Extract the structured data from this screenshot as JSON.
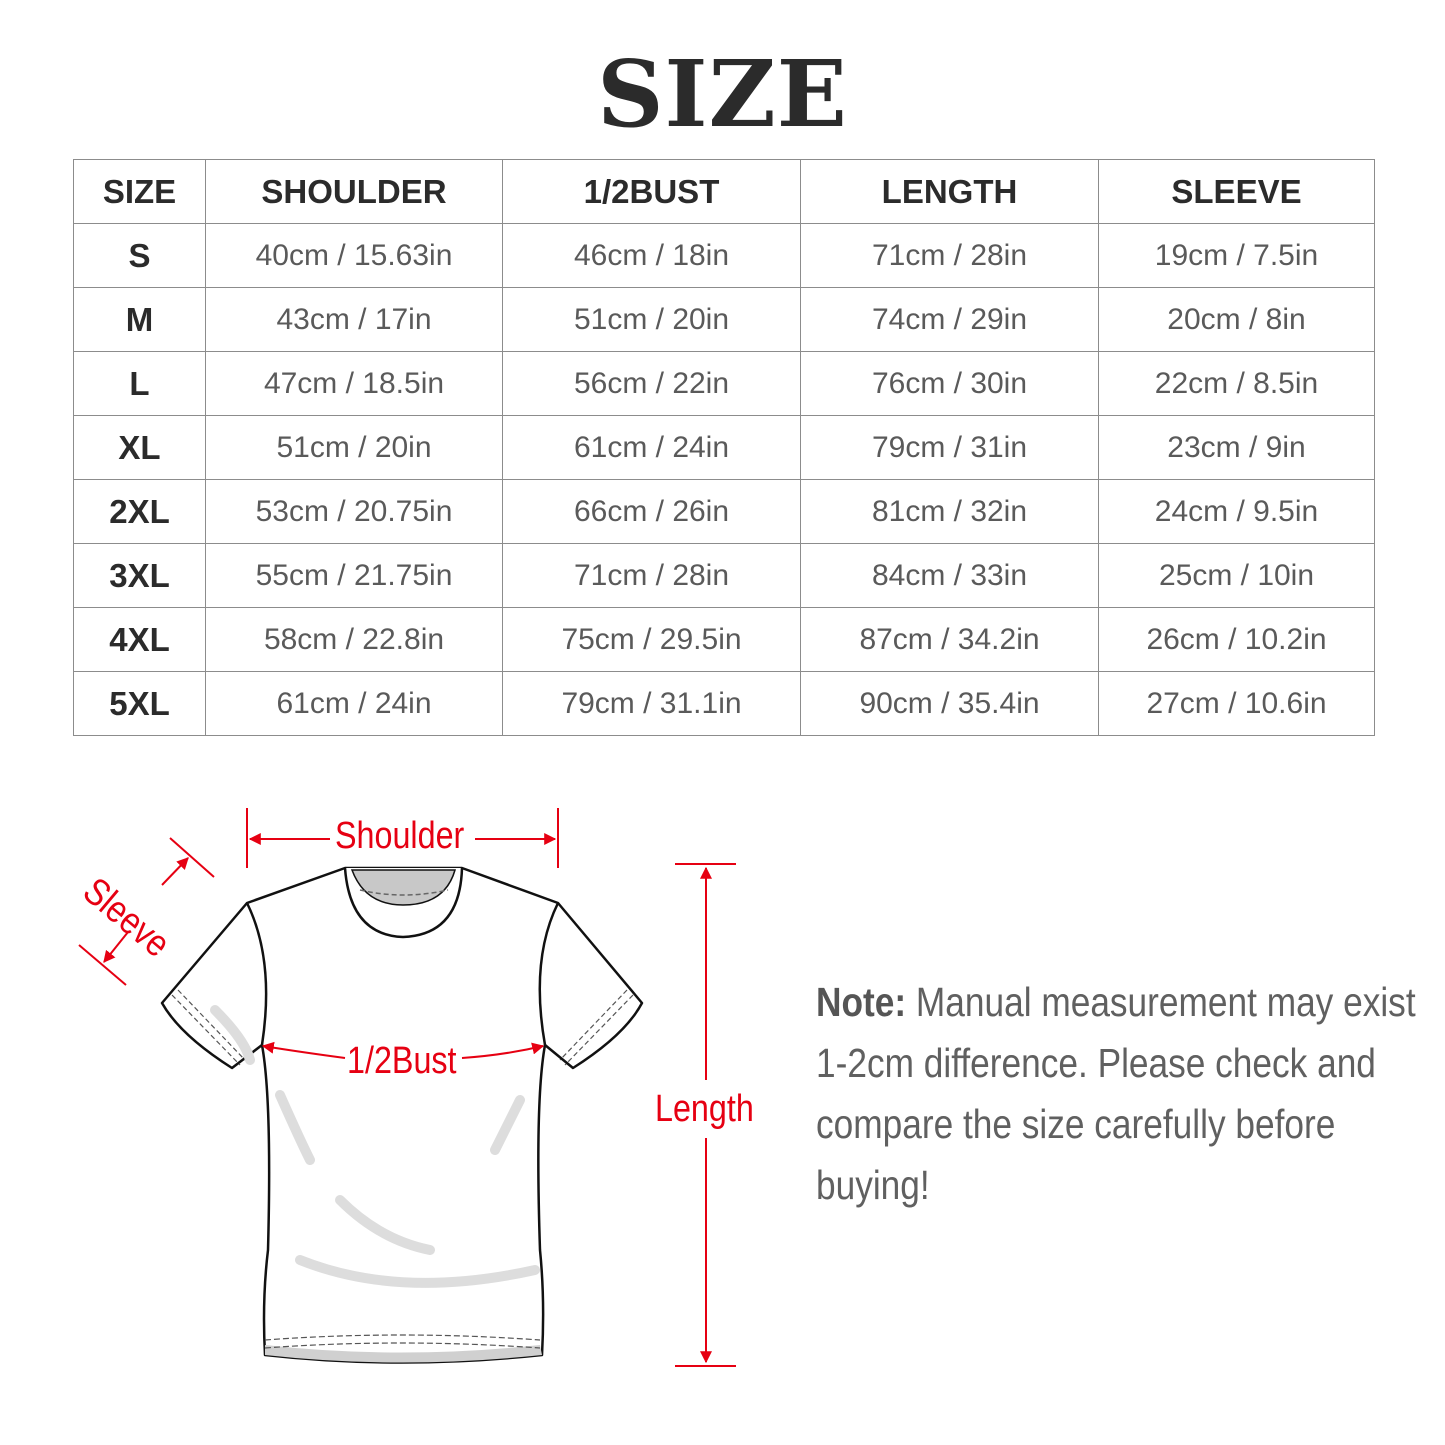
{
  "title": "SIZE",
  "table": {
    "headers": [
      "SIZE",
      "SHOULDER",
      "1/2BUST",
      "LENGTH",
      "SLEEVE"
    ],
    "rows": [
      [
        "S",
        "40cm / 15.63in",
        "46cm / 18in",
        "71cm / 28in",
        "19cm / 7.5in"
      ],
      [
        "M",
        "43cm / 17in",
        "51cm / 20in",
        "74cm / 29in",
        "20cm / 8in"
      ],
      [
        "L",
        "47cm / 18.5in",
        "56cm / 22in",
        "76cm / 30in",
        "22cm / 8.5in"
      ],
      [
        "XL",
        "51cm / 20in",
        "61cm / 24in",
        "79cm / 31in",
        "23cm / 9in"
      ],
      [
        "2XL",
        "53cm / 20.75in",
        "66cm / 26in",
        "81cm / 32in",
        "24cm / 9.5in"
      ],
      [
        "3XL",
        "55cm / 21.75in",
        "71cm / 28in",
        "84cm / 33in",
        "25cm / 10in"
      ],
      [
        "4XL",
        "58cm / 22.8in",
        "75cm / 29.5in",
        "87cm / 34.2in",
        "26cm / 10.2in"
      ],
      [
        "5XL",
        "61cm / 24in",
        "79cm / 31.1in",
        "90cm / 35.4in",
        "27cm / 10.6in"
      ]
    ]
  },
  "diagram": {
    "shoulder": "Shoulder",
    "sleeve": "Sleeve",
    "bust": "1/2Bust",
    "length": "Length",
    "accent_color": "#e60012"
  },
  "note": {
    "label": "Note:",
    "text": " Manual measurement may exist 1-2cm difference. Please check and compare the size carefully before buying!"
  }
}
